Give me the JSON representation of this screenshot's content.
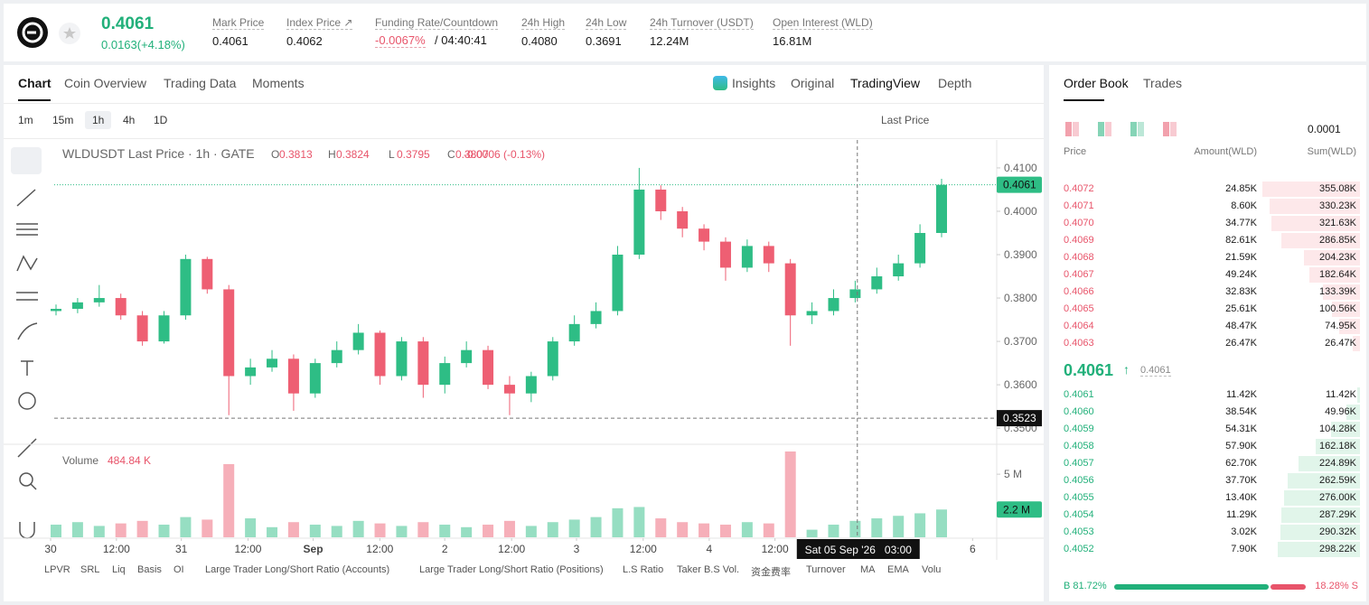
{
  "header": {
    "price": "0.4061",
    "change": "0.0163(+4.18%)",
    "stats": [
      {
        "label": "Mark Price",
        "value": "0.4061"
      },
      {
        "label": "Index Price ↗",
        "value": "0.4062"
      },
      {
        "label": "Funding Rate/Countdown",
        "value": "-0.0067%",
        "countdown": "/ 04:40:41"
      },
      {
        "label": "24h High",
        "value": "0.4080"
      },
      {
        "label": "24h Low",
        "value": "0.3691"
      },
      {
        "label": "24h Turnover (USDT)",
        "value": "12.24M"
      },
      {
        "label": "Open Interest (WLD)",
        "value": "16.81M"
      }
    ]
  },
  "tabs": [
    "Chart",
    "Coin Overview",
    "Trading Data",
    "Moments"
  ],
  "views": [
    "Insights",
    "Original",
    "TradingView",
    "Depth"
  ],
  "intervals": [
    "1m",
    "15m",
    "1h",
    "4h",
    "1D"
  ],
  "price_source": "Last Price",
  "legend": {
    "title": "WLDUSDT Last Price · 1h · GATE",
    "ohlc": [
      {
        "key": "O",
        "value": "0.3813"
      },
      {
        "key": "H",
        "value": "0.3824"
      },
      {
        "key": "L",
        "value": "0.3795"
      },
      {
        "key": "C",
        "value": "0.3807"
      }
    ],
    "change": "-0.0006 (-0.13%)"
  },
  "volume_legend": {
    "title": "Volume",
    "value": "484.84 K"
  },
  "chart_data": {
    "type": "candlestick",
    "candles": [
      {
        "o": 0.377,
        "h": 0.3785,
        "l": 0.376,
        "c": 0.3775
      },
      {
        "o": 0.3775,
        "h": 0.38,
        "l": 0.3765,
        "c": 0.379
      },
      {
        "o": 0.379,
        "h": 0.383,
        "l": 0.378,
        "c": 0.38
      },
      {
        "o": 0.38,
        "h": 0.381,
        "l": 0.375,
        "c": 0.376
      },
      {
        "o": 0.376,
        "h": 0.377,
        "l": 0.369,
        "c": 0.37
      },
      {
        "o": 0.37,
        "h": 0.377,
        "l": 0.3695,
        "c": 0.376
      },
      {
        "o": 0.376,
        "h": 0.39,
        "l": 0.375,
        "c": 0.389
      },
      {
        "o": 0.389,
        "h": 0.3895,
        "l": 0.381,
        "c": 0.382
      },
      {
        "o": 0.382,
        "h": 0.383,
        "l": 0.353,
        "c": 0.362
      },
      {
        "o": 0.362,
        "h": 0.366,
        "l": 0.36,
        "c": 0.364
      },
      {
        "o": 0.364,
        "h": 0.368,
        "l": 0.363,
        "c": 0.366
      },
      {
        "o": 0.366,
        "h": 0.367,
        "l": 0.354,
        "c": 0.358
      },
      {
        "o": 0.358,
        "h": 0.366,
        "l": 0.357,
        "c": 0.365
      },
      {
        "o": 0.365,
        "h": 0.37,
        "l": 0.364,
        "c": 0.368
      },
      {
        "o": 0.368,
        "h": 0.374,
        "l": 0.367,
        "c": 0.372
      },
      {
        "o": 0.372,
        "h": 0.3725,
        "l": 0.36,
        "c": 0.362
      },
      {
        "o": 0.362,
        "h": 0.371,
        "l": 0.361,
        "c": 0.37
      },
      {
        "o": 0.37,
        "h": 0.371,
        "l": 0.357,
        "c": 0.36
      },
      {
        "o": 0.36,
        "h": 0.3665,
        "l": 0.358,
        "c": 0.365
      },
      {
        "o": 0.365,
        "h": 0.37,
        "l": 0.364,
        "c": 0.368
      },
      {
        "o": 0.368,
        "h": 0.369,
        "l": 0.359,
        "c": 0.36
      },
      {
        "o": 0.36,
        "h": 0.362,
        "l": 0.353,
        "c": 0.358
      },
      {
        "o": 0.358,
        "h": 0.363,
        "l": 0.356,
        "c": 0.362
      },
      {
        "o": 0.362,
        "h": 0.371,
        "l": 0.361,
        "c": 0.37
      },
      {
        "o": 0.37,
        "h": 0.376,
        "l": 0.369,
        "c": 0.374
      },
      {
        "o": 0.374,
        "h": 0.379,
        "l": 0.373,
        "c": 0.377
      },
      {
        "o": 0.377,
        "h": 0.392,
        "l": 0.376,
        "c": 0.39
      },
      {
        "o": 0.39,
        "h": 0.41,
        "l": 0.389,
        "c": 0.405
      },
      {
        "o": 0.405,
        "h": 0.406,
        "l": 0.398,
        "c": 0.4
      },
      {
        "o": 0.4,
        "h": 0.401,
        "l": 0.394,
        "c": 0.396
      },
      {
        "o": 0.396,
        "h": 0.397,
        "l": 0.391,
        "c": 0.393
      },
      {
        "o": 0.393,
        "h": 0.394,
        "l": 0.384,
        "c": 0.387
      },
      {
        "o": 0.387,
        "h": 0.3935,
        "l": 0.386,
        "c": 0.392
      },
      {
        "o": 0.392,
        "h": 0.393,
        "l": 0.386,
        "c": 0.388
      },
      {
        "o": 0.388,
        "h": 0.389,
        "l": 0.369,
        "c": 0.376
      },
      {
        "o": 0.376,
        "h": 0.379,
        "l": 0.374,
        "c": 0.377
      },
      {
        "o": 0.377,
        "h": 0.382,
        "l": 0.376,
        "c": 0.38
      },
      {
        "o": 0.38,
        "h": 0.384,
        "l": 0.379,
        "c": 0.382
      },
      {
        "o": 0.382,
        "h": 0.387,
        "l": 0.381,
        "c": 0.385
      },
      {
        "o": 0.385,
        "h": 0.39,
        "l": 0.384,
        "c": 0.388
      },
      {
        "o": 0.388,
        "h": 0.397,
        "l": 0.387,
        "c": 0.395
      },
      {
        "o": 0.395,
        "h": 0.4075,
        "l": 0.394,
        "c": 0.4061
      }
    ],
    "volumes": [
      1.0,
      1.2,
      0.9,
      1.1,
      1.3,
      1.0,
      1.6,
      1.4,
      5.8,
      1.5,
      0.8,
      1.2,
      1.0,
      0.9,
      1.3,
      1.1,
      0.9,
      1.2,
      1.0,
      0.8,
      1.0,
      1.3,
      0.9,
      1.2,
      1.4,
      1.6,
      2.3,
      2.4,
      1.5,
      1.2,
      1.1,
      1.0,
      1.2,
      1.1,
      6.8,
      0.6,
      1.0,
      1.3,
      1.5,
      1.7,
      1.9,
      2.2
    ],
    "up_color": "#2ebd85",
    "down_color": "#ee5f73",
    "ylim": [
      0.3467,
      0.4154
    ],
    "yticks": [
      {
        "value": 0.41,
        "label": "0.4100"
      },
      {
        "value": 0.4,
        "label": "0.4000"
      },
      {
        "value": 0.39,
        "label": "0.3900"
      },
      {
        "value": 0.38,
        "label": "0.3800"
      },
      {
        "value": 0.37,
        "label": "0.3700"
      },
      {
        "value": 0.36,
        "label": "0.3600"
      },
      {
        "value": 0.35,
        "label": "0.3500"
      }
    ],
    "current_price": {
      "value": 0.4061,
      "label": "0.4061"
    },
    "y2lim": [
      0,
      6.8
    ],
    "y2ticks": [
      {
        "value": 5,
        "label": "5 M"
      }
    ],
    "current_volume": {
      "value": 2.2,
      "label": "2.2 M"
    },
    "xlim": [
      0,
      42.5
    ],
    "xticks": [
      {
        "value": 0.25,
        "label": "30"
      },
      {
        "value": 3.26,
        "label": "12:00"
      },
      {
        "value": 6.23,
        "label": "31"
      },
      {
        "value": 9.28,
        "label": "12:00"
      },
      {
        "value": 12.26,
        "label": "Sep"
      },
      {
        "value": 15.31,
        "label": "12:00"
      },
      {
        "value": 18.28,
        "label": "2"
      },
      {
        "value": 21.34,
        "label": "12:00"
      },
      {
        "value": 24.31,
        "label": "3"
      },
      {
        "value": 27.36,
        "label": "12:00"
      },
      {
        "value": 30.38,
        "label": "4"
      },
      {
        "value": 33.39,
        "label": "12:00"
      },
      {
        "value": 42.43,
        "label": "6"
      }
    ],
    "crosshair": {
      "x": 37.1,
      "time": "Sat 05 Sep '26   03:00",
      "price": {
        "value": 0.3523,
        "label": "0.3523"
      }
    }
  },
  "indicators": [
    "LPVR",
    "SRL",
    "Liq",
    "Basis",
    "OI",
    "Large Trader Long/Short Ratio (Accounts)",
    "Large Trader Long/Short Ratio (Positions)",
    "L.S Ratio",
    "Taker B.S Vol.",
    "资金费率",
    "Turnover",
    "MA",
    "EMA",
    "Volu"
  ],
  "order_book": {
    "tabs": [
      "Order Book",
      "Trades"
    ],
    "precision": "0.0001",
    "columns": [
      "Price",
      "Amount(WLD)",
      "Sum(WLD)"
    ],
    "asks": [
      {
        "price": "0.4072",
        "amount": "24.85K",
        "sum": {
          "value": 355080,
          "label": "355.08K"
        }
      },
      {
        "price": "0.4071",
        "amount": "8.60K",
        "sum": {
          "value": 330230,
          "label": "330.23K"
        }
      },
      {
        "price": "0.4070",
        "amount": "34.77K",
        "sum": {
          "value": 321630,
          "label": "321.63K"
        }
      },
      {
        "price": "0.4069",
        "amount": "82.61K",
        "sum": {
          "value": 286850,
          "label": "286.85K"
        }
      },
      {
        "price": "0.4068",
        "amount": "21.59K",
        "sum": {
          "value": 204230,
          "label": "204.23K"
        }
      },
      {
        "price": "0.4067",
        "amount": "49.24K",
        "sum": {
          "value": 182640,
          "label": "182.64K"
        }
      },
      {
        "price": "0.4066",
        "amount": "32.83K",
        "sum": {
          "value": 133390,
          "label": "133.39K"
        }
      },
      {
        "price": "0.4065",
        "amount": "25.61K",
        "sum": {
          "value": 100560,
          "label": "100.56K"
        }
      },
      {
        "price": "0.4064",
        "amount": "48.47K",
        "sum": {
          "value": 74950,
          "label": "74.95K"
        }
      },
      {
        "price": "0.4063",
        "amount": "26.47K",
        "sum": {
          "value": 26470,
          "label": "26.47K"
        }
      }
    ],
    "last": "0.4061",
    "mark": "0.4061",
    "bids": [
      {
        "price": "0.4061",
        "amount": "11.42K",
        "sum": {
          "value": 11420,
          "label": "11.42K"
        }
      },
      {
        "price": "0.4060",
        "amount": "38.54K",
        "sum": {
          "value": 49960,
          "label": "49.96K"
        }
      },
      {
        "price": "0.4059",
        "amount": "54.31K",
        "sum": {
          "value": 104280,
          "label": "104.28K"
        }
      },
      {
        "price": "0.4058",
        "amount": "57.90K",
        "sum": {
          "value": 162180,
          "label": "162.18K"
        }
      },
      {
        "price": "0.4057",
        "amount": "62.70K",
        "sum": {
          "value": 224890,
          "label": "224.89K"
        }
      },
      {
        "price": "0.4056",
        "amount": "37.70K",
        "sum": {
          "value": 262590,
          "label": "262.59K"
        }
      },
      {
        "price": "0.4055",
        "amount": "13.40K",
        "sum": {
          "value": 276000,
          "label": "276.00K"
        }
      },
      {
        "price": "0.4054",
        "amount": "11.29K",
        "sum": {
          "value": 287290,
          "label": "287.29K"
        }
      },
      {
        "price": "0.4053",
        "amount": "3.02K",
        "sum": {
          "value": 290320,
          "label": "290.32K"
        }
      },
      {
        "price": "0.4052",
        "amount": "7.90K",
        "sum": {
          "value": 298220,
          "label": "298.22K"
        }
      }
    ],
    "buy": {
      "value": 81.72,
      "label": "B 81.72%"
    },
    "sell": {
      "value": 18.28,
      "label": "18.28% S"
    }
  }
}
